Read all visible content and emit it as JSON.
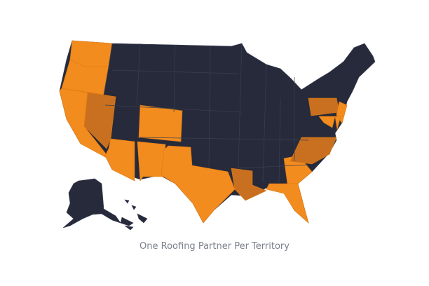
{
  "map": {
    "caption": "One Roofing Partner Per Territory",
    "colors": {
      "default": "#262a3b",
      "partner": "#f28c1e",
      "partner_alt": "#c8701f",
      "border": "#3a3f52"
    },
    "highlighted_states": [
      "WA",
      "OR",
      "CA",
      "NV",
      "AZ",
      "NM",
      "CO",
      "TX",
      "LA",
      "GA",
      "FL",
      "NC",
      "PA",
      "NJ",
      "MD",
      "DE"
    ]
  }
}
